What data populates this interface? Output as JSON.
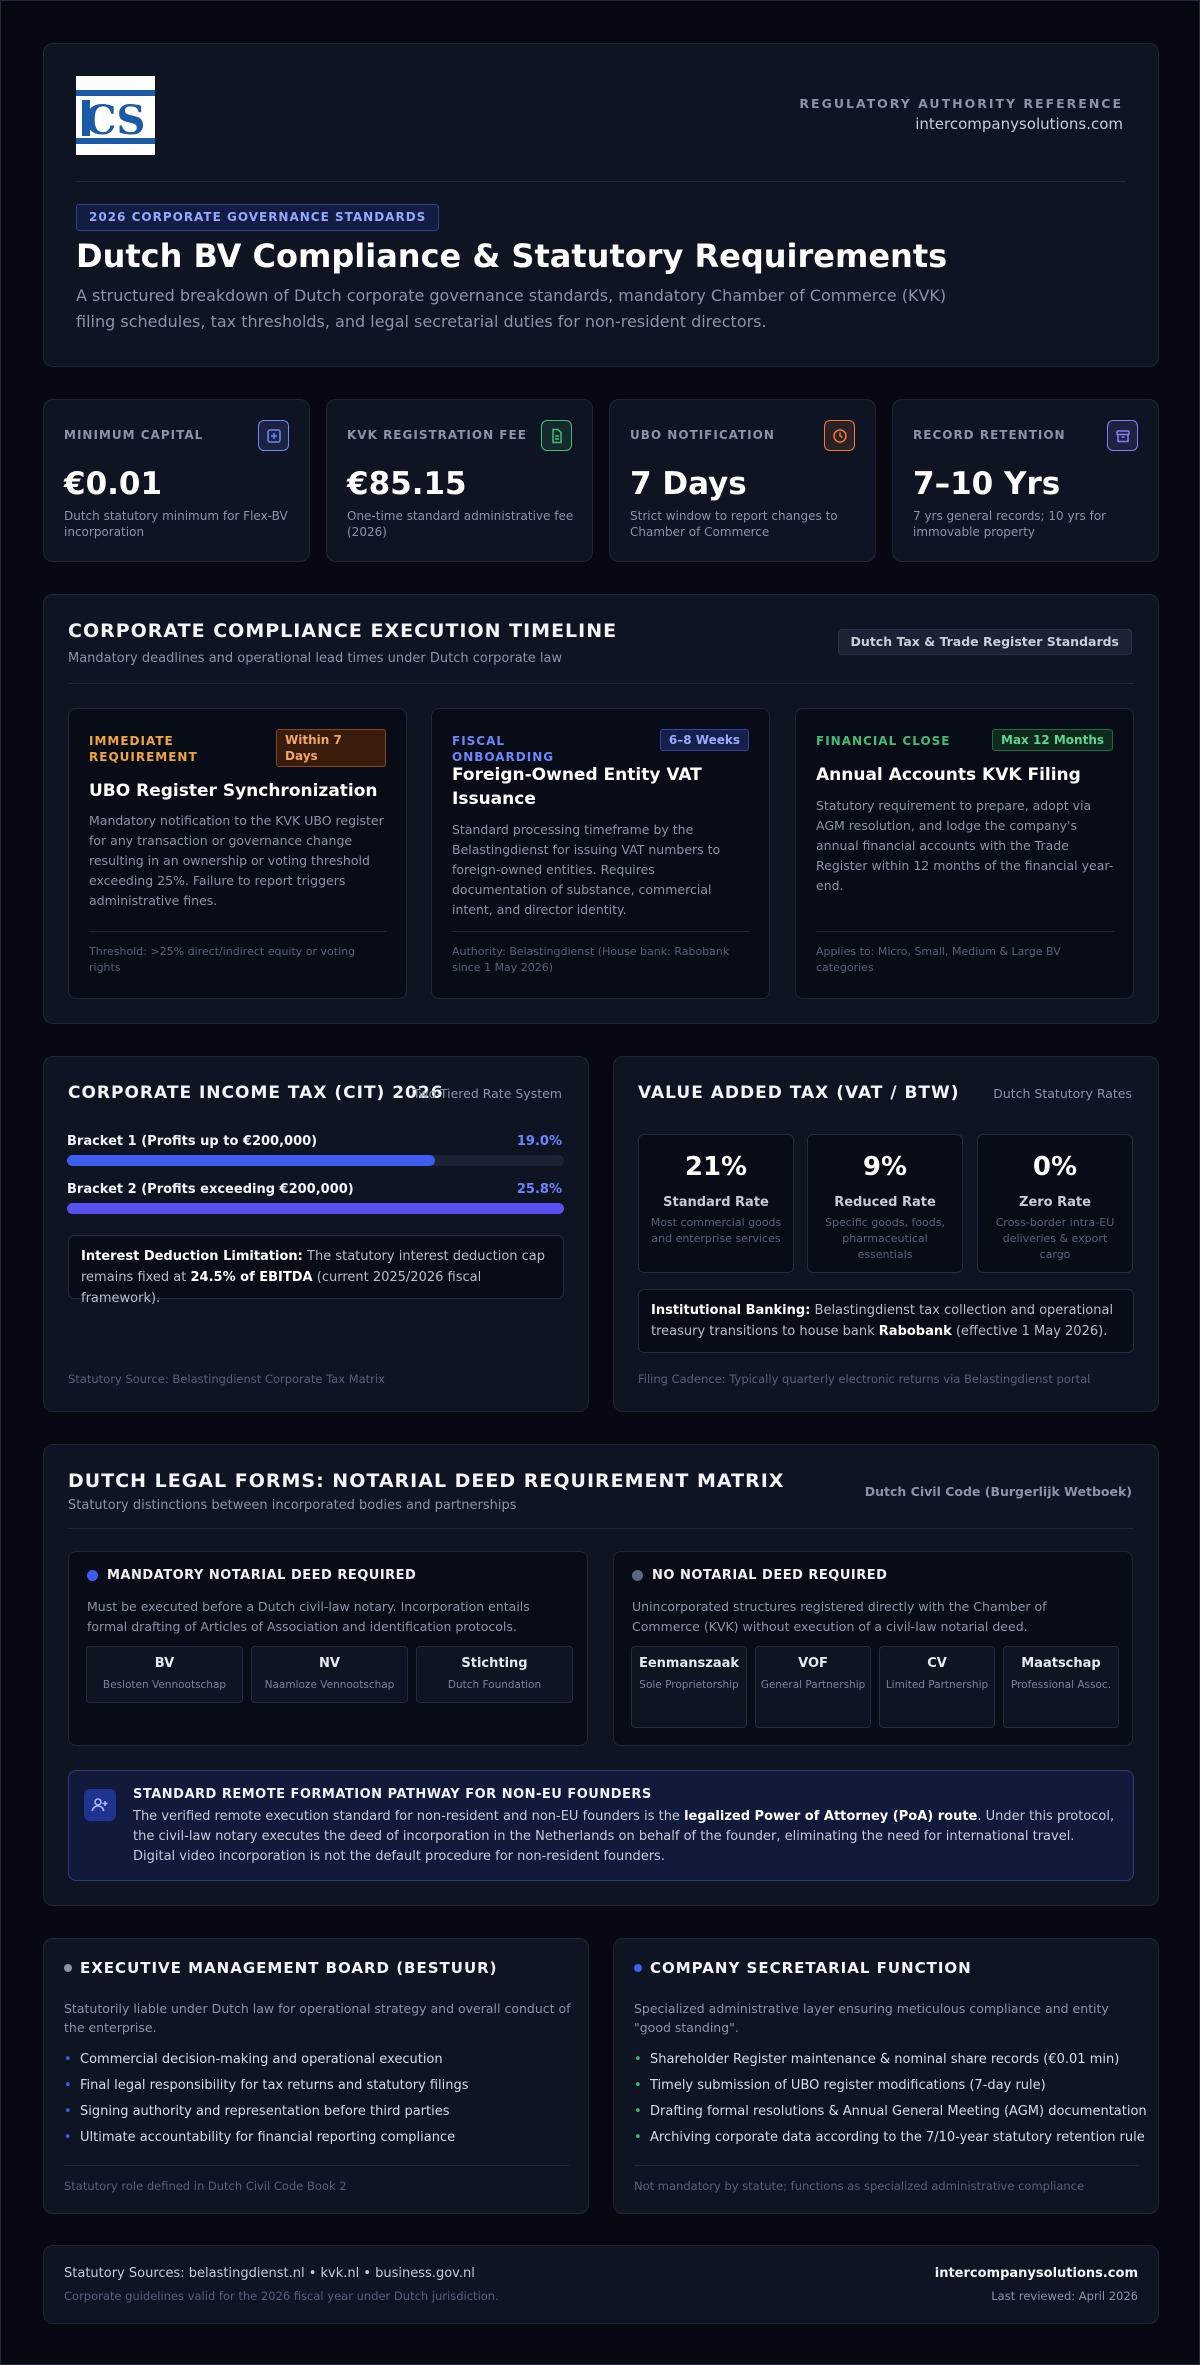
{
  "header": {
    "logo_text": "ICS",
    "authority_label": "REGULATORY AUTHORITY REFERENCE",
    "site": "intercompanysolutions.com",
    "tag": "2026 CORPORATE GOVERNANCE STANDARDS",
    "title": "Dutch BV Compliance & Statutory Requirements",
    "subtitle": "A structured breakdown of Dutch corporate governance standards, mandatory Chamber of Commerce (KVK) filing schedules, tax thresholds, and legal secretarial duties for non-resident directors."
  },
  "stats": [
    {
      "label": "MINIMUM CAPITAL",
      "value": "€0.01",
      "desc": "Dutch statutory minimum for Flex-BV incorporation",
      "icon": "plus-square-icon",
      "color": "#6d86ff"
    },
    {
      "label": "KVK REGISTRATION FEE",
      "value": "€85.15",
      "desc": "One-time standard administrative fee (2026)",
      "icon": "document-icon",
      "color": "#3fbf74"
    },
    {
      "label": "UBO NOTIFICATION",
      "value": "7 Days",
      "desc": "Strict window to report changes to Chamber of Commerce",
      "icon": "clock-icon",
      "color": "#f07a3a"
    },
    {
      "label": "RECORD RETENTION",
      "value": "7–10 Yrs",
      "desc": "7 yrs general records; 10 yrs for immovable property",
      "icon": "archive-icon",
      "color": "#8a7cff"
    }
  ],
  "timeline": {
    "title": "CORPORATE COMPLIANCE EXECUTION TIMELINE",
    "subtitle": "Mandatory deadlines and operational lead times under Dutch corporate law",
    "badge": "Dutch Tax & Trade Register Standards",
    "items": [
      {
        "kicker": "IMMEDIATE REQUIREMENT",
        "badge": "Within 7 Days",
        "title": "UBO Register Synchronization",
        "body": "Mandatory notification to the KVK UBO register for any transaction or governance change resulting in an ownership or voting threshold exceeding 25%. Failure to report triggers administrative fines.",
        "foot": "Threshold: >25% direct/indirect equity or voting rights"
      },
      {
        "kicker": "FISCAL ONBOARDING",
        "badge": "6–8 Weeks",
        "title": "Foreign-Owned Entity VAT Issuance",
        "body": "Standard processing timeframe by the Belastingdienst for issuing VAT numbers to foreign-owned entities. Requires documentation of substance, commercial intent, and director identity.",
        "foot": "Authority: Belastingdienst (House bank: Rabobank since 1 May 2026)"
      },
      {
        "kicker": "FINANCIAL CLOSE",
        "badge": "Max 12 Months",
        "title": "Annual Accounts KVK Filing",
        "body": "Statutory requirement to prepare, adopt via AGM resolution, and lodge the company's annual financial accounts with the Trade Register within 12 months of the financial year-end.",
        "foot": "Applies to: Micro, Small, Medium & Large BV categories"
      }
    ]
  },
  "cit": {
    "title": "CORPORATE INCOME TAX (CIT) 2026",
    "note": "Two-Tiered Rate System",
    "brackets": [
      {
        "label": "Bracket 1 (Profits up to €200,000)",
        "rate": "19.0%",
        "fill": 0.74
      },
      {
        "label": "Bracket 2 (Profits exceeding €200,000)",
        "rate": "25.8%",
        "fill": 1.0
      }
    ],
    "box_bold": "Interest Deduction Limitation:",
    "box_text1": " The statutory interest deduction cap remains fixed at ",
    "box_bold2": "24.5% of EBITDA",
    "box_text2": " (current 2025/2026 fiscal framework).",
    "source": "Statutory Source: Belastingdienst Corporate Tax Matrix"
  },
  "vat": {
    "title": "VALUE ADDED TAX (VAT / BTW)",
    "note": "Dutch Statutory Rates",
    "rates": [
      {
        "pct": "21%",
        "name": "Standard Rate",
        "desc": "Most commercial goods and enterprise services"
      },
      {
        "pct": "9%",
        "name": "Reduced Rate",
        "desc": "Specific goods, foods, pharmaceutical essentials"
      },
      {
        "pct": "0%",
        "name": "Zero Rate",
        "desc": "Cross-border intra-EU deliveries & export cargo"
      }
    ],
    "box_bold": "Institutional Banking:",
    "box_text1": " Belastingdienst tax collection and operational treasury transitions to house bank ",
    "box_bold2": "Rabobank",
    "box_text2": " (effective 1 May 2026).",
    "source": "Filing Cadence: Typically quarterly electronic returns via Belastingdienst portal"
  },
  "legal": {
    "title": "DUTCH LEGAL FORMS: NOTARIAL DEED REQUIREMENT MATRIX",
    "subtitle": "Statutory distinctions between incorporated bodies and partnerships",
    "note": "Dutch Civil Code (Burgerlijk Wetboek)",
    "required": {
      "head": "MANDATORY NOTARIAL DEED REQUIRED",
      "text": "Must be executed before a Dutch civil-law notary. Incorporation entails formal drafting of Articles of Association and identification protocols.",
      "forms": [
        {
          "name": "BV",
          "desc": "Besloten Vennootschap"
        },
        {
          "name": "NV",
          "desc": "Naamloze Vennootschap"
        },
        {
          "name": "Stichting",
          "desc": "Dutch Foundation"
        }
      ]
    },
    "not_required": {
      "head": "NO NOTARIAL DEED REQUIRED",
      "text": "Unincorporated structures registered directly with the Chamber of Commerce (KVK) without execution of a civil-law notarial deed.",
      "forms": [
        {
          "name": "Eenmanszaak",
          "desc": "Sole Proprietorship"
        },
        {
          "name": "VOF",
          "desc": "General Partnership"
        },
        {
          "name": "CV",
          "desc": "Limited Partnership"
        },
        {
          "name": "Maatschap",
          "desc": "Professional Assoc."
        }
      ]
    },
    "pathway": {
      "title": "STANDARD REMOTE FORMATION PATHWAY FOR NON-EU FOUNDERS",
      "text1": "The verified remote execution standard for non-resident and non-EU founders is the ",
      "bold": "legalized Power of Attorney (PoA) route",
      "text2": ". Under this protocol, the civil-law notary executes the deed of incorporation in the Netherlands on behalf of the founder, eliminating the need for international travel. Digital video incorporation is not the default procedure for non-resident founders."
    }
  },
  "board": {
    "title": "EXECUTIVE MANAGEMENT BOARD (BESTUUR)",
    "desc": "Statutorily liable under Dutch law for operational strategy and overall conduct of the enterprise.",
    "items": [
      "Commercial decision-making and operational execution",
      "Final legal responsibility for tax returns and statutory filings",
      "Signing authority and representation before third parties",
      "Ultimate accountability for financial reporting compliance"
    ],
    "foot": "Statutory role defined in Dutch Civil Code Book 2"
  },
  "secretary": {
    "title": "COMPANY SECRETARIAL FUNCTION",
    "desc": "Specialized administrative layer ensuring meticulous compliance and entity \"good standing\".",
    "items": [
      "Shareholder Register maintenance & nominal share records (€0.01 min)",
      "Timely submission of UBO register modifications (7-day rule)",
      "Drafting formal resolutions & Annual General Meeting (AGM) documentation",
      "Archiving corporate data according to the 7/10-year statutory retention rule"
    ],
    "foot": "Not mandatory by statute; functions as specialized administrative compliance"
  },
  "footer": {
    "sources": "Statutory Sources: belastingdienst.nl • kvk.nl • business.gov.nl",
    "validity": "Corporate guidelines valid for the 2026 fiscal year under Dutch jurisdiction.",
    "site": "intercompanysolutions.com",
    "reviewed": "Last reviewed: April 2026"
  }
}
